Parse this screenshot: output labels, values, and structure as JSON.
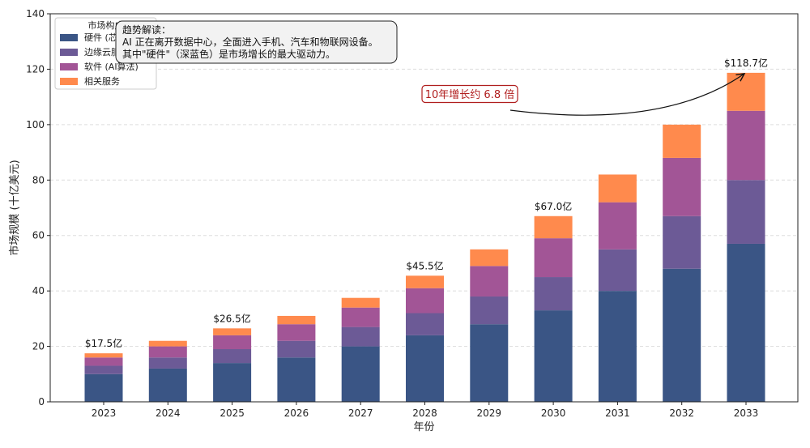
{
  "chart_data": {
    "type": "bar",
    "stacked": true,
    "categories": [
      "2023",
      "2024",
      "2025",
      "2026",
      "2027",
      "2028",
      "2029",
      "2030",
      "2031",
      "2032",
      "2033"
    ],
    "series": [
      {
        "name": "硬件 (芯片)",
        "color": "#3a5585",
        "values": [
          10,
          12,
          14,
          16,
          20,
          24,
          28,
          33,
          40,
          48,
          57
        ]
      },
      {
        "name": "边缘云服务",
        "color": "#6c5a96",
        "values": [
          3,
          4,
          5,
          6,
          7,
          8,
          10,
          12,
          15,
          19,
          23
        ]
      },
      {
        "name": "软件 (AI算法)",
        "color": "#a25596",
        "values": [
          3,
          4,
          5,
          6,
          7,
          9,
          11,
          14,
          17,
          21,
          25
        ]
      },
      {
        "name": "相关服务",
        "color": "#ff8a4d",
        "values": [
          1.5,
          2,
          2.5,
          3,
          3.5,
          4.5,
          6,
          8,
          10,
          12,
          13.7
        ]
      }
    ],
    "total_labels": [
      {
        "category": "2023",
        "value": 17.5,
        "text": "$17.5亿"
      },
      {
        "category": "2025",
        "value": 26.5,
        "text": "$26.5亿"
      },
      {
        "category": "2028",
        "value": 45.5,
        "text": "$45.5亿"
      },
      {
        "category": "2030",
        "value": 67.0,
        "text": "$67.0亿"
      },
      {
        "category": "2033",
        "value": 118.7,
        "text": "$118.7亿"
      }
    ],
    "xlabel": "年份",
    "ylabel": "市场规模 (十亿美元)",
    "ylim": [
      0,
      140
    ],
    "yticks": [
      0,
      20,
      40,
      60,
      80,
      100,
      120,
      140
    ],
    "grid": true,
    "legend": {
      "title": "市场构成",
      "placement": "top-left"
    },
    "annotations": {
      "note_title": "趋势解读：",
      "note_lines": [
        "AI 正在离开数据中心，全面进入手机、汽车和物联网设备。",
        "其中\"硬件\"（深蓝色）是市场增长的最大驱动力。"
      ],
      "arrow_text": "10年增长约 6.8 倍",
      "arrow_target": {
        "category": "2033",
        "value": 118.7
      },
      "arrow_text_color": "#b01e1e",
      "arrow_color": "#111111"
    }
  }
}
